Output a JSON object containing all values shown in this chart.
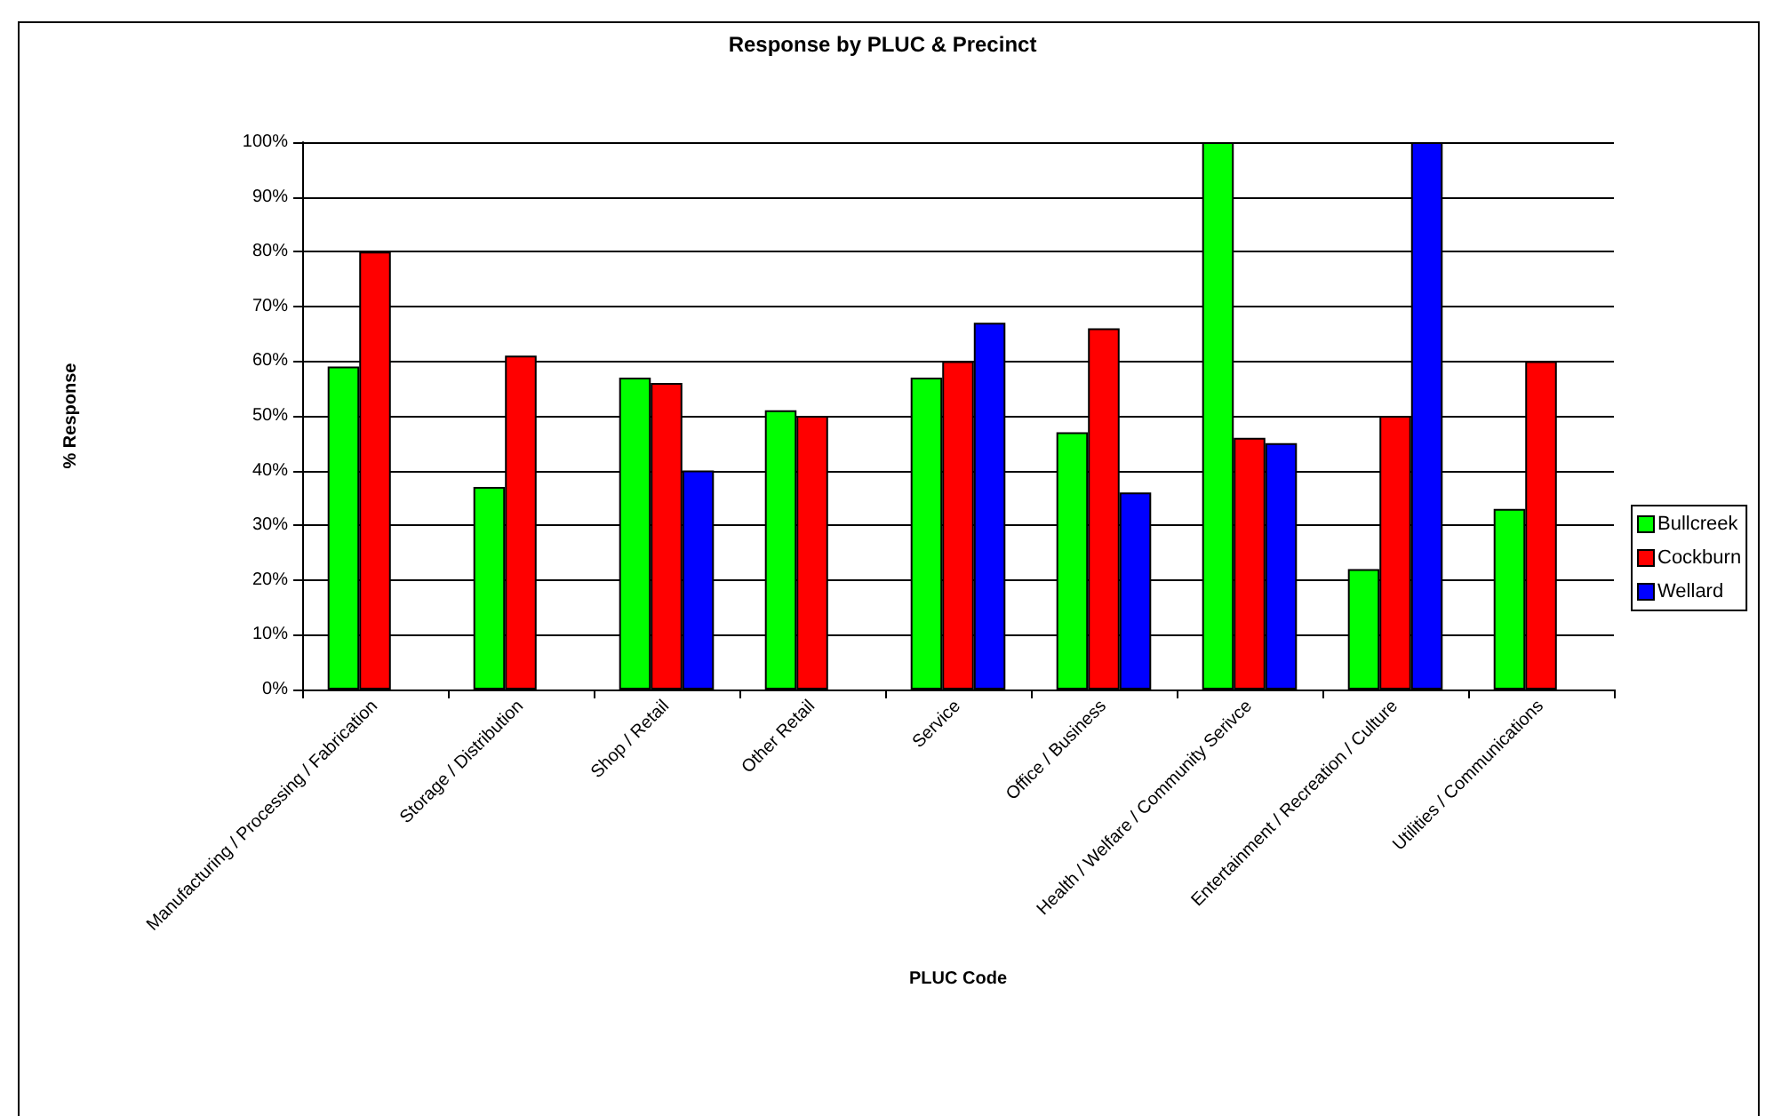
{
  "chart_data": {
    "type": "bar",
    "title": "Response by PLUC & Precinct",
    "xlabel": "PLUC Code",
    "ylabel": "% Response",
    "categories": [
      "Manufacturing / Processing / Fabrication",
      "Storage / Distribution",
      "Shop / Retail",
      "Other Retail",
      "Service",
      "Office / Business",
      "Health / Welfare / Community Serivce",
      "Entertainment / Recreation / Culture",
      "Utilities / Communications"
    ],
    "series": [
      {
        "name": "Bullcreek",
        "color": "#00ff00",
        "values": [
          59,
          37,
          57,
          51,
          57,
          47,
          100,
          22,
          33
        ]
      },
      {
        "name": "Cockburn",
        "color": "#ff0000",
        "values": [
          80,
          61,
          56,
          50,
          60,
          66,
          46,
          50,
          60
        ]
      },
      {
        "name": "Wellard",
        "color": "#0000ff",
        "values": [
          null,
          null,
          40,
          null,
          67,
          36,
          45,
          100,
          null
        ]
      }
    ],
    "ylim": [
      0,
      100
    ],
    "yticks": [
      {
        "value": 0,
        "label": "0%"
      },
      {
        "value": 10,
        "label": "10%"
      },
      {
        "value": 20,
        "label": "20%"
      },
      {
        "value": 30,
        "label": "30%"
      },
      {
        "value": 40,
        "label": "40%"
      },
      {
        "value": 50,
        "label": "50%"
      },
      {
        "value": 60,
        "label": "60%"
      },
      {
        "value": 70,
        "label": "70%"
      },
      {
        "value": 80,
        "label": "80%"
      },
      {
        "value": 90,
        "label": "90%"
      },
      {
        "value": 100,
        "label": "100%"
      }
    ],
    "grid": "y",
    "legend": "right"
  }
}
